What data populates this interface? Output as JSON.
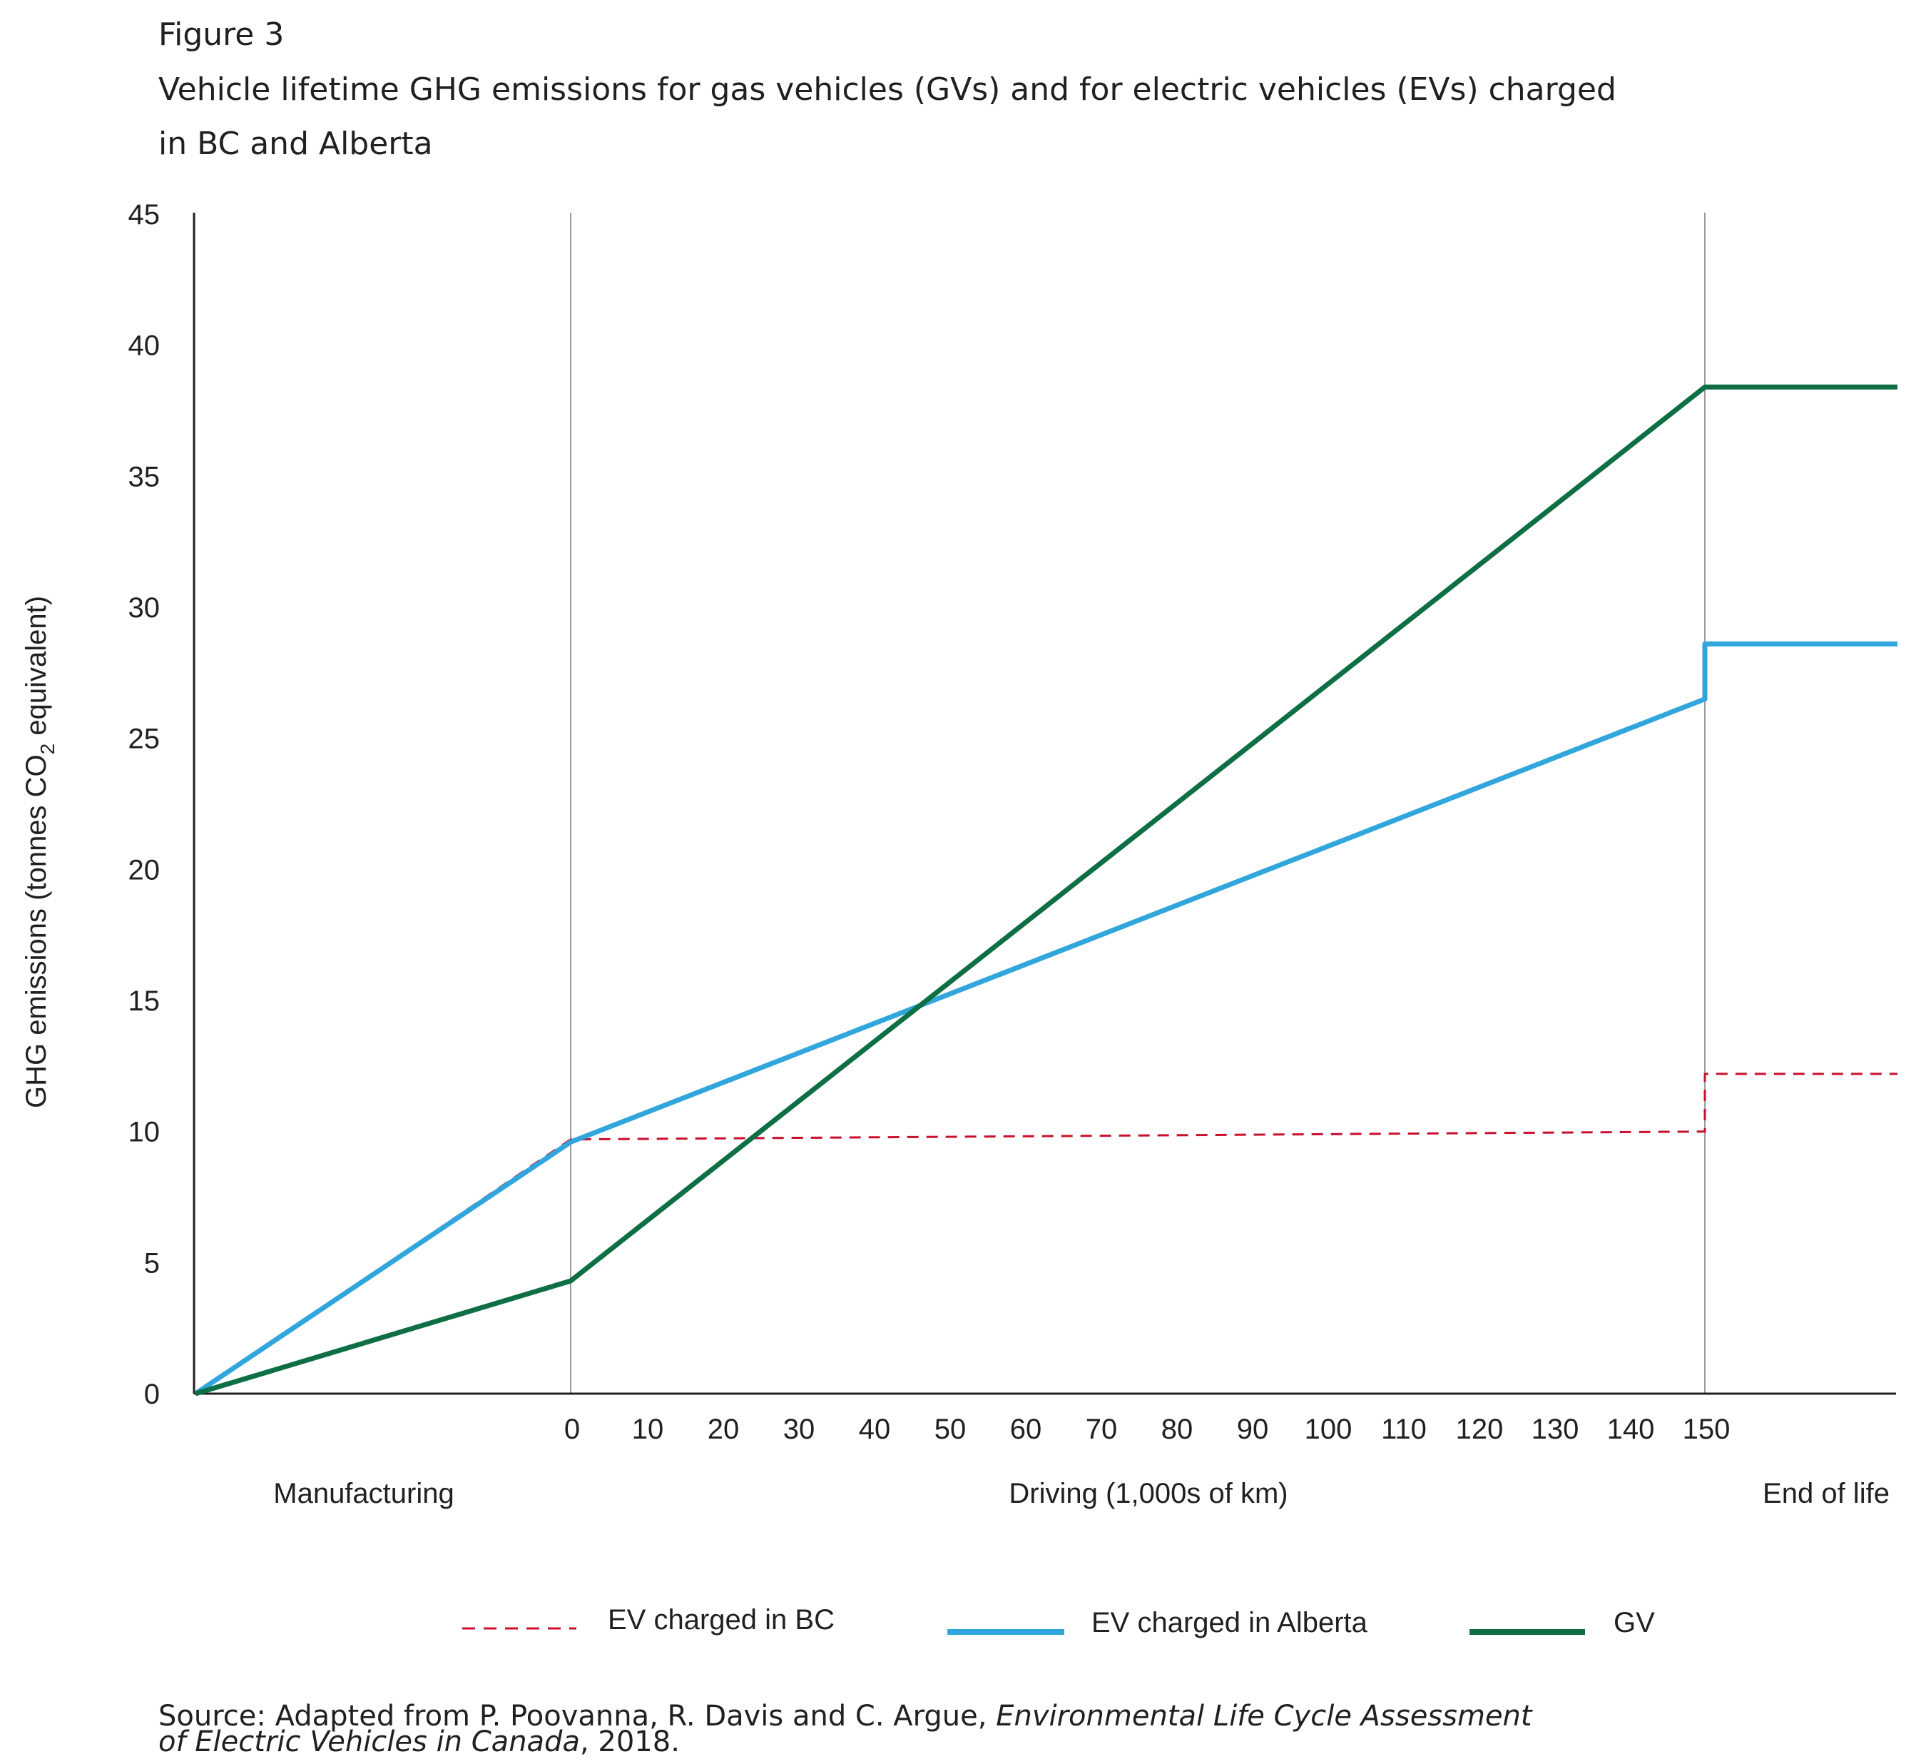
{
  "figure": {
    "label": "Figure 3",
    "title_line1": "Vehicle lifetime GHG emissions for gas vehicles (GVs) and for electric vehicles (EVs) charged",
    "title_line2": "in BC and Alberta"
  },
  "source": {
    "prefix": "Source: Adapted from P. Poovanna, R. Davis and C. Argue, ",
    "italic1": "Environmental Life Cycle Assessment",
    "italic2": "of Electric Vehicles in Canada",
    "suffix": ", 2018."
  },
  "chart_data": {
    "type": "line",
    "ylabel_parts": [
      "GHG emissions (tonnes CO",
      "2",
      " equivalent)"
    ],
    "ylim": [
      0,
      45
    ],
    "yticks": [
      0,
      5,
      10,
      15,
      20,
      25,
      30,
      35,
      40,
      45
    ],
    "xticks": [
      0,
      10,
      20,
      30,
      40,
      50,
      60,
      70,
      80,
      90,
      100,
      110,
      120,
      130,
      140,
      150
    ],
    "phases": [
      "Manufacturing",
      "Driving (1,000s of km)",
      "End of life"
    ],
    "grid": false,
    "legend_position": "bottom",
    "series": [
      {
        "name": "EV charged in BC",
        "color": "#c8102e",
        "style": "dashed",
        "manufacturing": [
          0,
          9.7
        ],
        "driving": {
          "km_thousands": [
            0,
            150
          ],
          "values": [
            9.7,
            10.0
          ]
        },
        "end_of_life": [
          12.2,
          12.2
        ]
      },
      {
        "name": "EV charged in Alberta",
        "color": "#31a6dc",
        "style": "solid",
        "manufacturing": [
          0,
          9.6
        ],
        "driving": {
          "km_thousands": [
            0,
            150
          ],
          "values": [
            9.6,
            26.5
          ]
        },
        "end_of_life": [
          28.6,
          28.6
        ]
      },
      {
        "name": "GV",
        "color": "#0e6f45",
        "style": "solid",
        "manufacturing": [
          0,
          4.3
        ],
        "driving": {
          "km_thousands": [
            0,
            150
          ],
          "values": [
            4.3,
            38.4
          ]
        },
        "end_of_life": [
          38.4,
          38.4
        ]
      }
    ]
  }
}
